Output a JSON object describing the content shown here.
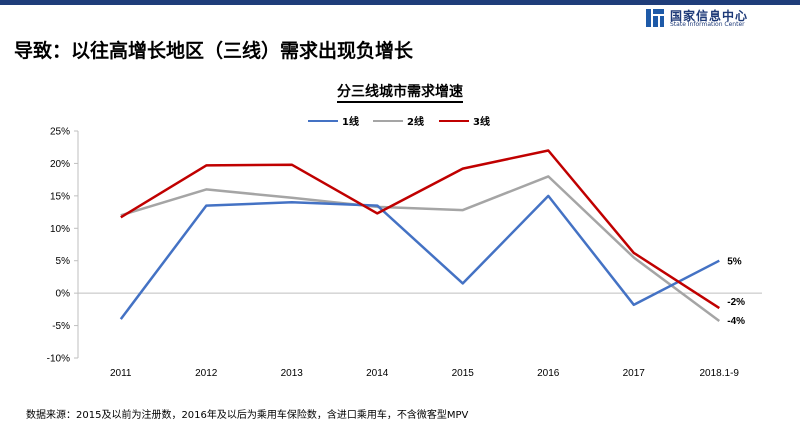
{
  "header": {
    "logo_cn": "国家信息中心",
    "logo_en": "State Information Center",
    "title": "导致：以往高增长地区（三线）需求出现负增长",
    "bar_color": "#1f3d7a"
  },
  "logo_icon": "building-blocks-icon",
  "footer": {
    "source_note": "数据来源：2015及以前为注册数，2016年及以后为乘用车保险数，含进口乘用车，不含微客型MPV"
  },
  "chart_data": {
    "type": "line",
    "title": "分三线城市需求增速",
    "xlabel": "",
    "ylabel": "",
    "categories": [
      "2011",
      "2012",
      "2013",
      "2014",
      "2015",
      "2016",
      "2017",
      "2018.1-9"
    ],
    "yticks": [
      "25%",
      "20%",
      "15%",
      "10%",
      "5%",
      "0%",
      "-5%",
      "-10%"
    ],
    "ylim": [
      -10,
      25
    ],
    "grid": false,
    "legend_position": "top",
    "series": [
      {
        "name": "1线",
        "color": "#4472c4",
        "values": [
          -4,
          13.5,
          14,
          13.5,
          1.5,
          15,
          -1.8,
          5
        ],
        "end_label": "5%"
      },
      {
        "name": "2线",
        "color": "#a5a5a5",
        "values": [
          12,
          16,
          14.7,
          13.3,
          12.8,
          18,
          5.5,
          -4.3
        ],
        "end_label": "-4%"
      },
      {
        "name": "3线",
        "color": "#c00000",
        "values": [
          11.7,
          19.7,
          19.8,
          12.3,
          19.2,
          22,
          6.2,
          -2.3
        ],
        "end_label": "-2%"
      }
    ]
  }
}
